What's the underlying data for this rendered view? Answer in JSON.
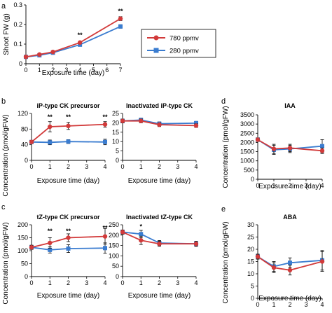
{
  "colors": {
    "s780": "#d23a3a",
    "s280": "#3a7cd0",
    "axis": "#000000"
  },
  "panel_labels": [
    "a",
    "b",
    "c",
    "d",
    "e"
  ],
  "legend": {
    "items": [
      "780 ppmv",
      "280 ppmv"
    ]
  },
  "shared": {
    "xlabel": "Exposure time (day)",
    "ylabel_conc": "Concentration (pmol/gFW)"
  },
  "chart_data": [
    {
      "id": "a",
      "type": "line",
      "title": "",
      "xlabel": "Exposure time (day)",
      "ylabel": "Shoot FW (g)",
      "xlim": [
        0,
        7
      ],
      "ylim": [
        0,
        0.3
      ],
      "xticks": [
        0,
        1,
        2,
        3,
        4,
        5,
        6,
        7
      ],
      "yticks": [
        0,
        0.1,
        0.2,
        0.3
      ],
      "ytick_labels": [
        "0",
        "0.1",
        "0.2",
        "0.3"
      ],
      "series": [
        {
          "name": "780 ppmv",
          "x": [
            0,
            1,
            2,
            4,
            7
          ],
          "values": [
            0.035,
            0.047,
            0.06,
            0.108,
            0.23
          ],
          "err": [
            0.003,
            0.003,
            0.004,
            0.006,
            0.01
          ]
        },
        {
          "name": "280 ppmv",
          "x": [
            0,
            1,
            2,
            4,
            7
          ],
          "values": [
            0.035,
            0.043,
            0.056,
            0.097,
            0.19
          ],
          "err": [
            0.003,
            0.003,
            0.004,
            0.005,
            0.009
          ]
        }
      ],
      "annotations": [
        {
          "x": 4,
          "text": "**",
          "y": 0.135
        },
        {
          "x": 7,
          "text": "**",
          "y": 0.258
        }
      ]
    },
    {
      "id": "b1",
      "type": "line",
      "title": "iP-type CK precursor",
      "xlabel": "Exposure time (day)",
      "ylabel": "",
      "xlim": [
        0,
        4
      ],
      "ylim": [
        0,
        120
      ],
      "xticks": [
        0,
        1,
        2,
        3,
        4
      ],
      "yticks": [
        0,
        40,
        80,
        120
      ],
      "ytick_labels": [
        "0",
        "40",
        "80",
        "120"
      ],
      "series": [
        {
          "name": "780 ppmv",
          "x": [
            0,
            1,
            2,
            4
          ],
          "values": [
            47,
            86,
            88,
            92
          ],
          "err": [
            4,
            13,
            9,
            7
          ]
        },
        {
          "name": "280 ppmv",
          "x": [
            0,
            1,
            2,
            4
          ],
          "values": [
            47,
            46,
            48,
            47
          ],
          "err": [
            4,
            6,
            5,
            7
          ]
        }
      ],
      "annotations": [
        {
          "x": 1,
          "text": "**",
          "y": 106
        },
        {
          "x": 2,
          "text": "**",
          "y": 106
        },
        {
          "x": 4,
          "text": "**",
          "y": 106
        }
      ]
    },
    {
      "id": "b2",
      "type": "line",
      "title": "Inactivated iP-type CK",
      "xlabel": "Exposure time (day)",
      "ylabel": "",
      "xlim": [
        0,
        4
      ],
      "ylim": [
        0,
        25
      ],
      "xticks": [
        0,
        1,
        2,
        3,
        4
      ],
      "yticks": [
        0,
        5,
        10,
        15,
        20,
        25
      ],
      "ytick_labels": [
        "0",
        "5",
        "10",
        "15",
        "20",
        "25"
      ],
      "series": [
        {
          "name": "780 ppmv",
          "x": [
            0,
            1,
            2,
            4
          ],
          "values": [
            21,
            21,
            19,
            18.5
          ],
          "err": [
            1,
            1,
            1,
            1
          ]
        },
        {
          "name": "280 ppmv",
          "x": [
            0,
            1,
            2,
            4
          ],
          "values": [
            21,
            21.5,
            19.5,
            19.8
          ],
          "err": [
            1,
            1,
            1,
            1
          ]
        }
      ],
      "annotations": []
    },
    {
      "id": "c1",
      "type": "line",
      "title": "tZ-type CK precursor",
      "xlabel": "Exposure time (day)",
      "ylabel": "",
      "xlim": [
        0,
        4
      ],
      "ylim": [
        0,
        200
      ],
      "xticks": [
        0,
        1,
        2,
        3,
        4
      ],
      "yticks": [
        0,
        50,
        100,
        150,
        200
      ],
      "ytick_labels": [
        "0",
        "50",
        "100",
        "150",
        "200"
      ],
      "series": [
        {
          "name": "780 ppmv",
          "x": [
            0,
            1,
            2,
            4
          ],
          "values": [
            113,
            130,
            150,
            155
          ],
          "err": [
            8,
            20,
            15,
            30
          ]
        },
        {
          "name": "280 ppmv",
          "x": [
            0,
            1,
            2,
            4
          ],
          "values": [
            113,
            103,
            108,
            110
          ],
          "err": [
            8,
            12,
            15,
            20
          ]
        }
      ],
      "annotations": [
        {
          "x": 1,
          "text": "**",
          "y": 168
        },
        {
          "x": 2,
          "text": "**",
          "y": 168
        },
        {
          "x": 4,
          "text": "**",
          "y": 180
        }
      ]
    },
    {
      "id": "c2",
      "type": "line",
      "title": "Inactivated tZ-type CK",
      "xlabel": "Exposure time (day)",
      "ylabel": "",
      "xlim": [
        0,
        4
      ],
      "ylim": [
        0,
        250
      ],
      "xticks": [
        0,
        1,
        2,
        3,
        4
      ],
      "yticks": [
        0,
        50,
        100,
        150,
        200,
        250
      ],
      "ytick_labels": [
        "0",
        "50",
        "100",
        "150",
        "200",
        "250"
      ],
      "series": [
        {
          "name": "780 ppmv",
          "x": [
            0,
            1,
            2,
            4
          ],
          "values": [
            215,
            175,
            158,
            158
          ],
          "err": [
            10,
            20,
            12,
            12
          ]
        },
        {
          "name": "280 ppmv",
          "x": [
            0,
            1,
            2,
            4
          ],
          "values": [
            215,
            205,
            162,
            158
          ],
          "err": [
            10,
            18,
            12,
            12
          ]
        }
      ],
      "annotations": [
        {
          "x": 1,
          "text": "*",
          "y": 232
        }
      ]
    },
    {
      "id": "d",
      "type": "line",
      "title": "IAA",
      "xlabel": "Exposure time (day)",
      "ylabel": "Concentration (pmol/gFW)",
      "xlim": [
        0,
        4
      ],
      "ylim": [
        0,
        3500
      ],
      "xticks": [
        0,
        1,
        2,
        3,
        4
      ],
      "yticks": [
        0,
        500,
        1000,
        1500,
        2000,
        2500,
        3000,
        3500
      ],
      "ytick_labels": [
        "0",
        "500",
        "1000",
        "1500",
        "2000",
        "2500",
        "3000",
        "3500"
      ],
      "series": [
        {
          "name": "780 ppmv",
          "x": [
            0,
            1,
            2,
            4
          ],
          "values": [
            2150,
            1650,
            1700,
            1550
          ],
          "err": [
            100,
            250,
            200,
            150
          ]
        },
        {
          "name": "280 ppmv",
          "x": [
            0,
            1,
            2,
            4
          ],
          "values": [
            2150,
            1600,
            1650,
            1800
          ],
          "err": [
            100,
            250,
            200,
            350
          ]
        }
      ],
      "annotations": []
    },
    {
      "id": "e",
      "type": "line",
      "title": "ABA",
      "xlabel": "Exposure time (day)",
      "ylabel": "Concentration (pmol/gFW)",
      "xlim": [
        0,
        4
      ],
      "ylim": [
        0,
        30
      ],
      "xticks": [
        0,
        1,
        2,
        3,
        4
      ],
      "yticks": [
        0,
        5,
        10,
        15,
        20,
        25,
        30
      ],
      "ytick_labels": [
        "0",
        "5",
        "10",
        "15",
        "20",
        "25",
        "30"
      ],
      "series": [
        {
          "name": "780 ppmv",
          "x": [
            0,
            1,
            2,
            4
          ],
          "values": [
            17,
            12.5,
            11.5,
            15
          ],
          "err": [
            1,
            2,
            2,
            4
          ]
        },
        {
          "name": "280 ppmv",
          "x": [
            0,
            1,
            2,
            4
          ],
          "values": [
            17,
            13,
            14.5,
            15.5
          ],
          "err": [
            1,
            2,
            2,
            4
          ]
        }
      ],
      "annotations": []
    }
  ]
}
